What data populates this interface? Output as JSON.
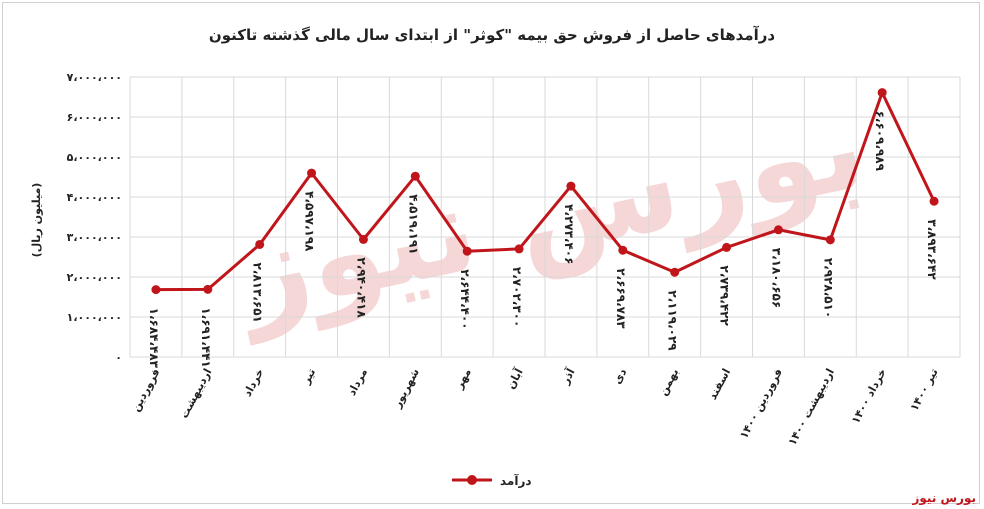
{
  "chart_data": {
    "type": "line",
    "title": "درآمدهای حاصل از فروش حق بیمه \"کوثر\" از ابتدای سال مالی گذشته تاکنون",
    "ylabel": "(میلیون ریال)",
    "xlabel": "",
    "ylim": [
      0,
      7000000
    ],
    "yticks": [
      {
        "value": 0,
        "label": "۰"
      },
      {
        "value": 1000000,
        "label": "۱،۰۰۰،۰۰۰"
      },
      {
        "value": 2000000,
        "label": "۲،۰۰۰،۰۰۰"
      },
      {
        "value": 3000000,
        "label": "۳،۰۰۰،۰۰۰"
      },
      {
        "value": 4000000,
        "label": "۴،۰۰۰،۰۰۰"
      },
      {
        "value": 5000000,
        "label": "۵،۰۰۰،۰۰۰"
      },
      {
        "value": 6000000,
        "label": "۶،۰۰۰،۰۰۰"
      },
      {
        "value": 7000000,
        "label": "۷،۰۰۰،۰۰۰"
      }
    ],
    "grid": true,
    "legend_position": "bottom",
    "categories": [
      "فروردین",
      "اردیبهشت",
      "خرداد",
      "تیر",
      "مرداد",
      "شهریور",
      "مهر",
      "آبان",
      "آذر",
      "دی",
      "بهمن",
      "اسفند",
      "فروردین ۱۴۰۰",
      "اردیبهشت ۱۴۰۰",
      "خرداد ۱۴۰۰",
      "تیر ۱۴۰۰"
    ],
    "series": [
      {
        "name": "درآمد",
        "color": "#c0151a",
        "values": [
          1684483,
          1691441,
          2813651,
          4597198,
          2940418,
          4519191,
          2644400,
          2702300,
          4273406,
          2669783,
          2119029,
          2739422,
          3180656,
          2928510,
          6609989,
          3893642
        ],
        "labels": [
          "۱،۶۸۴،۴۸۳",
          "۱،۶۹۱،۴۴۱",
          "۲،۸۱۳،۶۵۱",
          "۴،۵۹۷،۱۹۸",
          "۲،۹۴۰،۴۱۸",
          "۴،۵۱۹،۱۹۱",
          "۲،۶۴۴،۴۰۰",
          "۲،۷۰۲،۳۰۰",
          "۴،۲۷۳،۴۰۶",
          "۲،۶۶۹،۷۸۳",
          "۲،۱۱۹،۰۲۹",
          "۲،۷۳۹،۴۲۲",
          "۳،۱۸۰،۶۵۶",
          "۲،۹۲۸،۵۱۰",
          "۶،۶۰۹،۹۸۹",
          "۳،۸۹۳،۶۴۲"
        ]
      }
    ]
  },
  "watermark": {
    "text": "بورس نیوز",
    "color": "#e9a8a8"
  },
  "brand": {
    "text": "بورس نیوز",
    "color": "#c0151a"
  }
}
